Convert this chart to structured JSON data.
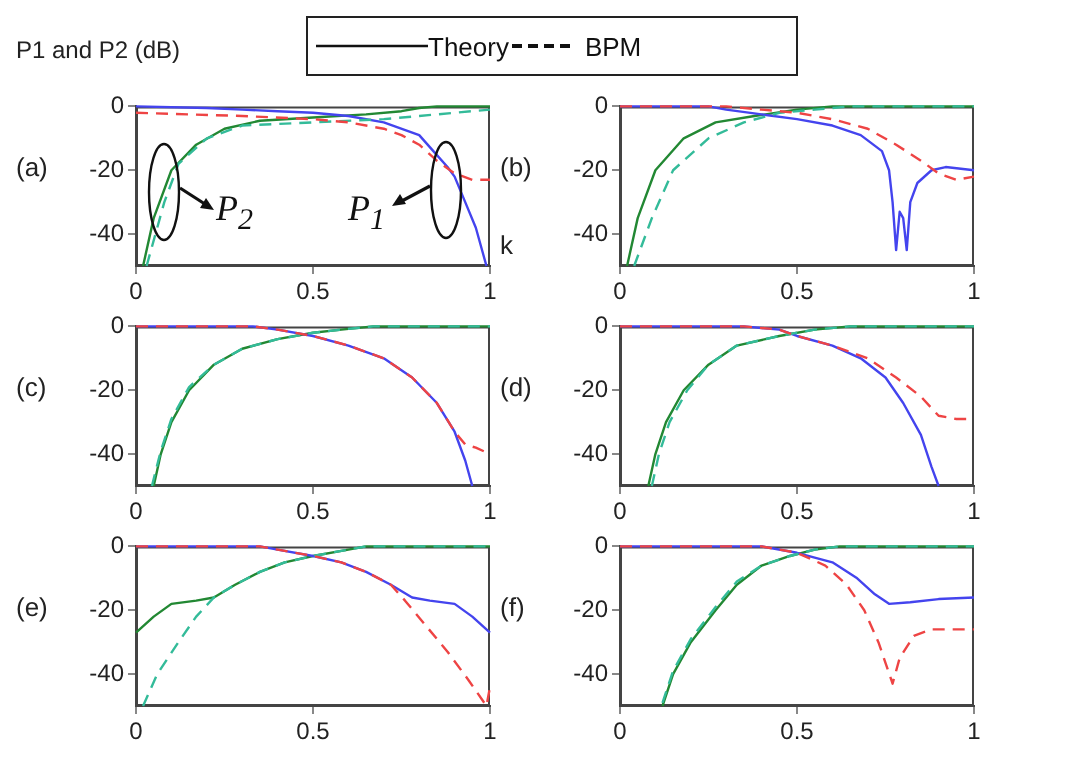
{
  "chart_data": [
    {
      "type": "line",
      "title": "(a)",
      "ylabel": "P1 and P2 (dB)",
      "xlabel": "k",
      "xlim": [
        0,
        1
      ],
      "ylim": [
        -50,
        0
      ],
      "xticks": [
        0,
        0.5,
        1
      ],
      "yticks": [
        0,
        -20,
        -40
      ],
      "marker": "none",
      "annotations": [
        "Theory",
        "BPM",
        "P$_{2}$",
        "P$_{1}$"
      ],
      "series": [
        {
          "color": "#4444ee",
          "line_style": "solid",
          "x": [
            0,
            0.2,
            0.3,
            0.4,
            0.5,
            0.6,
            0.7,
            0.8,
            0.84,
            0.88,
            0.9,
            0.93,
            0.96,
            0.98,
            0.99
          ],
          "values": [
            0,
            -0.5,
            -1,
            -1.5,
            -2,
            -3,
            -5,
            -9,
            -14,
            -19,
            -22,
            -30,
            -38,
            -46,
            -50
          ]
        },
        {
          "color": "#ee4444",
          "line_style": "dashed",
          "x": [
            0,
            0.15,
            0.3,
            0.5,
            0.6,
            0.7,
            0.75,
            0.8,
            0.85,
            0.9,
            0.95,
            1
          ],
          "values": [
            -2,
            -2.5,
            -3,
            -4,
            -5,
            -7,
            -9,
            -12,
            -17,
            -21,
            -23,
            -23
          ]
        },
        {
          "color": "#228833",
          "line_style": "solid",
          "x": [
            0.02,
            0.05,
            0.1,
            0.17,
            0.25,
            0.35,
            0.5,
            0.65,
            0.75,
            0.8,
            0.85,
            1
          ],
          "values": [
            -50,
            -35,
            -20,
            -12,
            -7,
            -4.5,
            -3.5,
            -2.5,
            -1.5,
            -0.5,
            0,
            0
          ]
        },
        {
          "color": "#33bb99",
          "line_style": "dashed",
          "x": [
            0.03,
            0.08,
            0.12,
            0.2,
            0.3,
            0.5,
            0.7,
            0.8,
            0.9,
            1
          ],
          "values": [
            -50,
            -30,
            -18,
            -10,
            -6,
            -5,
            -4,
            -3,
            -2,
            -1
          ]
        }
      ]
    },
    {
      "type": "line",
      "title": "(b)",
      "xlim": [
        0,
        1
      ],
      "ylim": [
        -50,
        0
      ],
      "xticks": [
        0,
        0.5,
        1
      ],
      "yticks": [
        0,
        -20,
        -40
      ],
      "marker": "none",
      "series": [
        {
          "color": "#4444ee",
          "line_style": "solid",
          "x": [
            0,
            0.25,
            0.3,
            0.4,
            0.5,
            0.6,
            0.68,
            0.74,
            0.76,
            0.77,
            0.78,
            0.79,
            0.8,
            0.81,
            0.82,
            0.84,
            0.88,
            0.92,
            1
          ],
          "values": [
            0,
            0,
            -1,
            -2.5,
            -4,
            -6,
            -9,
            -14,
            -20,
            -30,
            -45,
            -33,
            -35,
            -45,
            -30,
            -24,
            -20,
            -19,
            -20
          ]
        },
        {
          "color": "#ee4444",
          "line_style": "dashed",
          "x": [
            0,
            0.3,
            0.4,
            0.5,
            0.6,
            0.7,
            0.78,
            0.85,
            0.9,
            0.95,
            1
          ],
          "values": [
            0,
            0,
            -1,
            -2,
            -4,
            -7,
            -12,
            -17,
            -21,
            -23,
            -22
          ]
        },
        {
          "color": "#228833",
          "line_style": "solid",
          "x": [
            0.02,
            0.05,
            0.1,
            0.18,
            0.27,
            0.38,
            0.5,
            0.6,
            1
          ],
          "values": [
            -50,
            -35,
            -20,
            -10,
            -5,
            -3,
            -1,
            0,
            0
          ]
        },
        {
          "color": "#33bb99",
          "line_style": "dashed",
          "x": [
            0.04,
            0.09,
            0.15,
            0.25,
            0.35,
            0.45,
            0.55,
            0.65,
            1
          ],
          "values": [
            -50,
            -35,
            -20,
            -10,
            -5,
            -2,
            -1,
            0,
            0
          ]
        }
      ]
    },
    {
      "type": "line",
      "title": "(c)",
      "xlim": [
        0,
        1
      ],
      "ylim": [
        -50,
        0
      ],
      "xticks": [
        0,
        0.5,
        1
      ],
      "yticks": [
        0,
        -20,
        -40
      ],
      "marker": "none",
      "series": [
        {
          "color": "#4444ee",
          "line_style": "solid",
          "x": [
            0,
            0.33,
            0.4,
            0.5,
            0.6,
            0.7,
            0.78,
            0.85,
            0.9,
            0.93,
            0.95
          ],
          "values": [
            0,
            0,
            -1,
            -3,
            -6,
            -10,
            -16,
            -24,
            -33,
            -42,
            -50
          ]
        },
        {
          "color": "#ee4444",
          "line_style": "dashed",
          "x": [
            0,
            0.33,
            0.4,
            0.5,
            0.6,
            0.7,
            0.78,
            0.85,
            0.9,
            0.93,
            0.96,
            1
          ],
          "values": [
            0,
            0,
            -1,
            -3,
            -6,
            -10,
            -16,
            -24,
            -33,
            -37,
            -38,
            -40
          ]
        },
        {
          "color": "#228833",
          "line_style": "solid",
          "x": [
            0.05,
            0.07,
            0.1,
            0.15,
            0.22,
            0.3,
            0.4,
            0.5,
            0.58,
            0.67,
            1
          ],
          "values": [
            -50,
            -40,
            -30,
            -20,
            -12,
            -7,
            -4,
            -2,
            -1,
            0,
            0
          ]
        },
        {
          "color": "#33bb99",
          "line_style": "dashed",
          "x": [
            0.045,
            0.07,
            0.1,
            0.15,
            0.22,
            0.3,
            0.4,
            0.5,
            0.58,
            0.67,
            1
          ],
          "values": [
            -50,
            -39,
            -29,
            -19,
            -12,
            -7,
            -4,
            -2,
            -1,
            0,
            0
          ]
        }
      ]
    },
    {
      "type": "line",
      "title": "(d)",
      "xlim": [
        0,
        1
      ],
      "ylim": [
        -50,
        0
      ],
      "xticks": [
        0,
        0.5,
        1
      ],
      "yticks": [
        0,
        -20,
        -40
      ],
      "marker": "none",
      "series": [
        {
          "color": "#4444ee",
          "line_style": "solid",
          "x": [
            0,
            0.35,
            0.45,
            0.5,
            0.6,
            0.68,
            0.75,
            0.8,
            0.85,
            0.88,
            0.9
          ],
          "values": [
            0,
            0,
            -1,
            -3,
            -6,
            -10,
            -16,
            -24,
            -34,
            -44,
            -50
          ]
        },
        {
          "color": "#ee4444",
          "line_style": "dashed",
          "x": [
            0,
            0.35,
            0.45,
            0.5,
            0.6,
            0.7,
            0.78,
            0.85,
            0.9,
            0.95,
            1
          ],
          "values": [
            0,
            0,
            -1,
            -3,
            -6,
            -10,
            -16,
            -22,
            -28,
            -29,
            -29
          ]
        },
        {
          "color": "#228833",
          "line_style": "solid",
          "x": [
            0.08,
            0.1,
            0.13,
            0.18,
            0.25,
            0.33,
            0.45,
            0.55,
            0.65,
            1
          ],
          "values": [
            -50,
            -40,
            -30,
            -20,
            -12,
            -6,
            -3,
            -1,
            0,
            0
          ]
        },
        {
          "color": "#33bb99",
          "line_style": "dashed",
          "x": [
            0.09,
            0.11,
            0.14,
            0.19,
            0.25,
            0.33,
            0.45,
            0.55,
            0.65,
            1
          ],
          "values": [
            -50,
            -40,
            -30,
            -20,
            -12,
            -6,
            -3,
            -1,
            0,
            0
          ]
        }
      ]
    },
    {
      "type": "line",
      "title": "(e)",
      "xlim": [
        0,
        1
      ],
      "ylim": [
        -50,
        0
      ],
      "xticks": [
        0,
        0.5,
        1
      ],
      "yticks": [
        0,
        -20,
        -40
      ],
      "marker": "none",
      "series": [
        {
          "color": "#4444ee",
          "line_style": "solid",
          "x": [
            0,
            0.35,
            0.4,
            0.5,
            0.58,
            0.65,
            0.72,
            0.78,
            0.83,
            0.9,
            0.95,
            1
          ],
          "values": [
            0,
            0,
            -1,
            -3,
            -5,
            -8,
            -12,
            -16,
            -17,
            -18,
            -22,
            -27
          ]
        },
        {
          "color": "#ee4444",
          "line_style": "dashed",
          "x": [
            0,
            0.35,
            0.4,
            0.5,
            0.58,
            0.65,
            0.72,
            0.76,
            0.82,
            0.88,
            0.94,
            0.99,
            1
          ],
          "values": [
            0,
            0,
            -1,
            -3,
            -5,
            -8,
            -12,
            -17,
            -25,
            -33,
            -42,
            -50,
            -44
          ]
        },
        {
          "color": "#228833",
          "line_style": "solid",
          "x": [
            0,
            0.05,
            0.1,
            0.17,
            0.22,
            0.28,
            0.35,
            0.42,
            0.5,
            0.6,
            0.65,
            1
          ],
          "values": [
            -27,
            -22,
            -18,
            -17,
            -16,
            -12,
            -8,
            -5,
            -3,
            -1,
            0,
            0
          ]
        },
        {
          "color": "#33bb99",
          "line_style": "dashed",
          "x": [
            0.02,
            0.06,
            0.12,
            0.17,
            0.22,
            0.28,
            0.35,
            0.42,
            0.5,
            0.6,
            0.65,
            1
          ],
          "values": [
            -50,
            -40,
            -30,
            -22,
            -16,
            -12,
            -8,
            -5,
            -3,
            -1,
            0,
            0
          ]
        }
      ]
    },
    {
      "type": "line",
      "title": "(f)",
      "xlim": [
        0,
        1
      ],
      "ylim": [
        -50,
        0
      ],
      "xticks": [
        0,
        0.5,
        1
      ],
      "yticks": [
        0,
        -20,
        -40
      ],
      "marker": "none",
      "series": [
        {
          "color": "#4444ee",
          "line_style": "solid",
          "x": [
            0,
            0.4,
            0.5,
            0.6,
            0.67,
            0.72,
            0.76,
            0.82,
            0.9,
            1
          ],
          "values": [
            0,
            0,
            -2,
            -5,
            -10,
            -15,
            -18,
            -17.5,
            -16.5,
            -16
          ]
        },
        {
          "color": "#ee4444",
          "line_style": "dashed",
          "x": [
            0,
            0.4,
            0.5,
            0.58,
            0.64,
            0.69,
            0.73,
            0.77,
            0.79,
            0.83,
            0.88,
            1
          ],
          "values": [
            0,
            0,
            -2,
            -6,
            -12,
            -20,
            -30,
            -43,
            -35,
            -28,
            -26,
            -26
          ]
        },
        {
          "color": "#228833",
          "line_style": "solid",
          "x": [
            0.12,
            0.15,
            0.2,
            0.27,
            0.33,
            0.4,
            0.48,
            0.55,
            0.62,
            1
          ],
          "values": [
            -50,
            -40,
            -30,
            -20,
            -12,
            -6,
            -3,
            -1,
            0,
            0
          ]
        },
        {
          "color": "#33bb99",
          "line_style": "dashed",
          "x": [
            0.12,
            0.15,
            0.2,
            0.27,
            0.33,
            0.4,
            0.48,
            0.55,
            0.62,
            1
          ],
          "values": [
            -49,
            -39,
            -29,
            -19,
            -11,
            -6,
            -3,
            -1,
            0,
            0
          ]
        }
      ]
    }
  ]
}
